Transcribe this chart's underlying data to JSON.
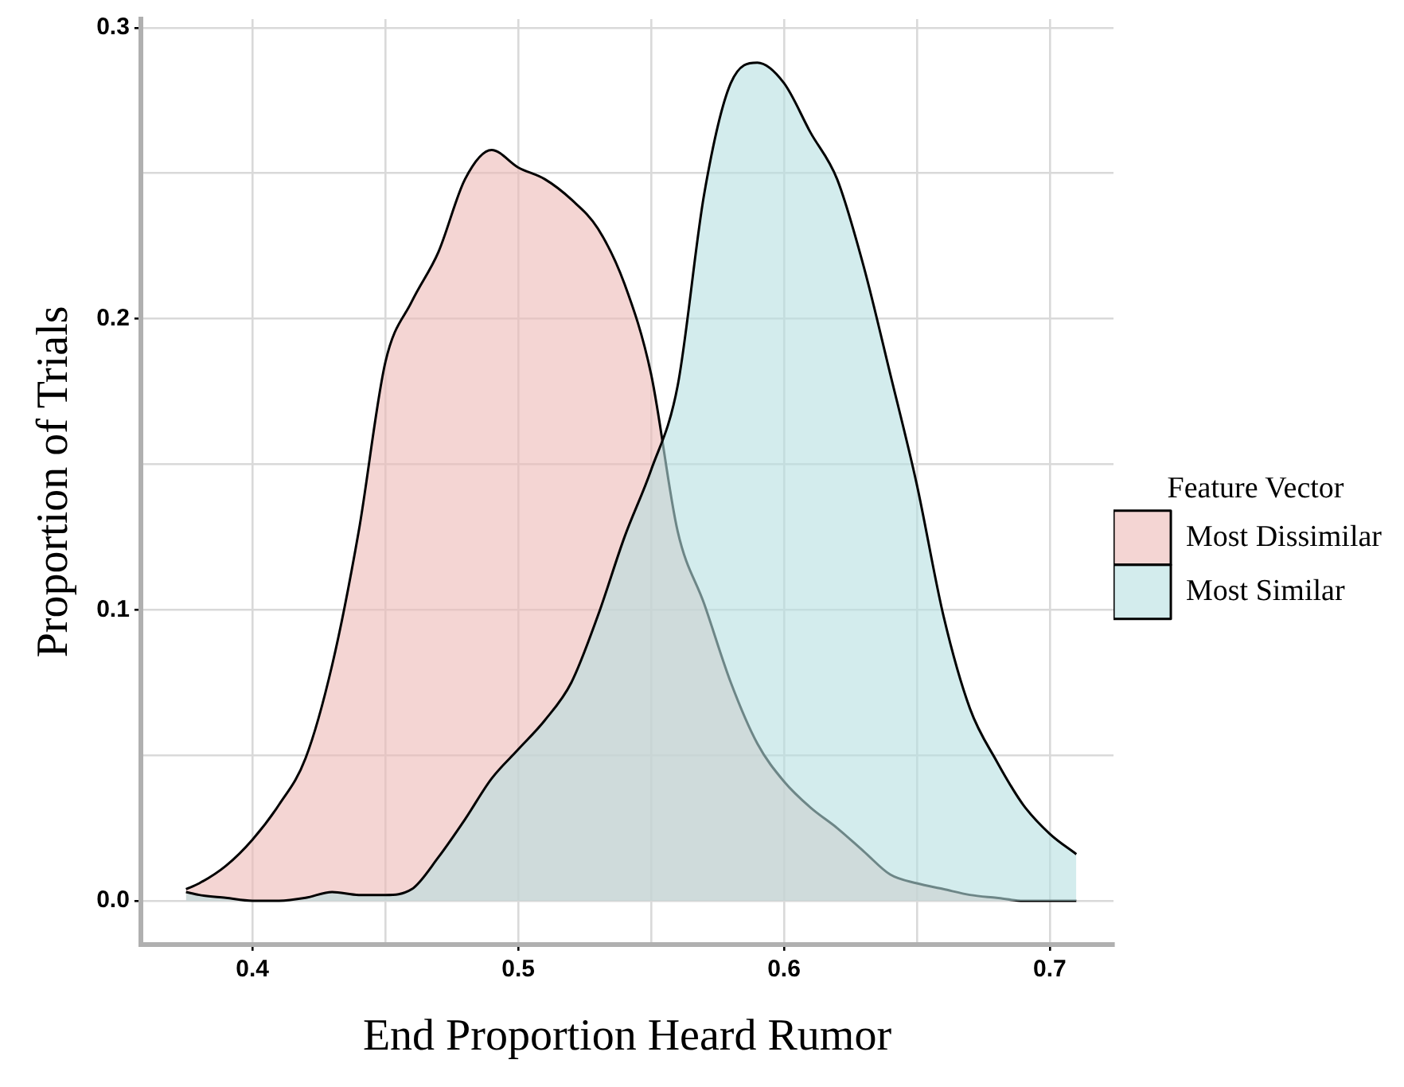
{
  "chart_data": {
    "type": "area",
    "xlabel": "End Proportion Heard Rumor",
    "ylabel": "Proportion of Trials",
    "legend_title": "Feature Vector",
    "x": [
      0.375,
      0.38,
      0.39,
      0.4,
      0.41,
      0.42,
      0.43,
      0.44,
      0.45,
      0.46,
      0.47,
      0.48,
      0.49,
      0.5,
      0.51,
      0.52,
      0.53,
      0.54,
      0.55,
      0.56,
      0.57,
      0.58,
      0.59,
      0.6,
      0.61,
      0.62,
      0.63,
      0.64,
      0.65,
      0.66,
      0.67,
      0.68,
      0.69,
      0.7,
      0.71
    ],
    "series": [
      {
        "name": "Most Dissimilar",
        "color": "#ecb9b6",
        "values": [
          0.004,
          0.006,
          0.012,
          0.021,
          0.033,
          0.049,
          0.081,
          0.127,
          0.185,
          0.206,
          0.223,
          0.248,
          0.258,
          0.252,
          0.248,
          0.241,
          0.231,
          0.212,
          0.181,
          0.127,
          0.102,
          0.075,
          0.054,
          0.041,
          0.032,
          0.025,
          0.017,
          0.009,
          0.006,
          0.004,
          0.002,
          0.001,
          0,
          0,
          0
        ]
      },
      {
        "name": "Most Similar",
        "color": "#b5dfe1",
        "values": [
          0.003,
          0.002,
          0.001,
          0,
          0,
          0.001,
          0.003,
          0.002,
          0.002,
          0.004,
          0.015,
          0.028,
          0.042,
          0.052,
          0.062,
          0.075,
          0.098,
          0.125,
          0.148,
          0.177,
          0.243,
          0.281,
          0.288,
          0.281,
          0.264,
          0.248,
          0.218,
          0.181,
          0.143,
          0.098,
          0.066,
          0.048,
          0.033,
          0.023,
          0.016
        ]
      }
    ],
    "xlim": [
      0.358,
      0.724
    ],
    "ylim": [
      -0.015,
      0.303
    ],
    "xticks": [
      0.4,
      {
        "value": 0.45,
        "label": null
      },
      0.5,
      {
        "value": 0.55,
        "label": null
      },
      0.6,
      {
        "value": 0.65,
        "label": null
      },
      0.7
    ],
    "yticks": [
      {
        "value": 0,
        "label": "0.0"
      },
      {
        "value": 0.05,
        "label": null
      },
      0.1,
      {
        "value": 0.15,
        "label": null
      },
      0.2,
      {
        "value": 0.25,
        "label": null
      },
      0.3
    ],
    "grid": true,
    "legend": "right",
    "marker": "none",
    "line_style": "solid"
  }
}
